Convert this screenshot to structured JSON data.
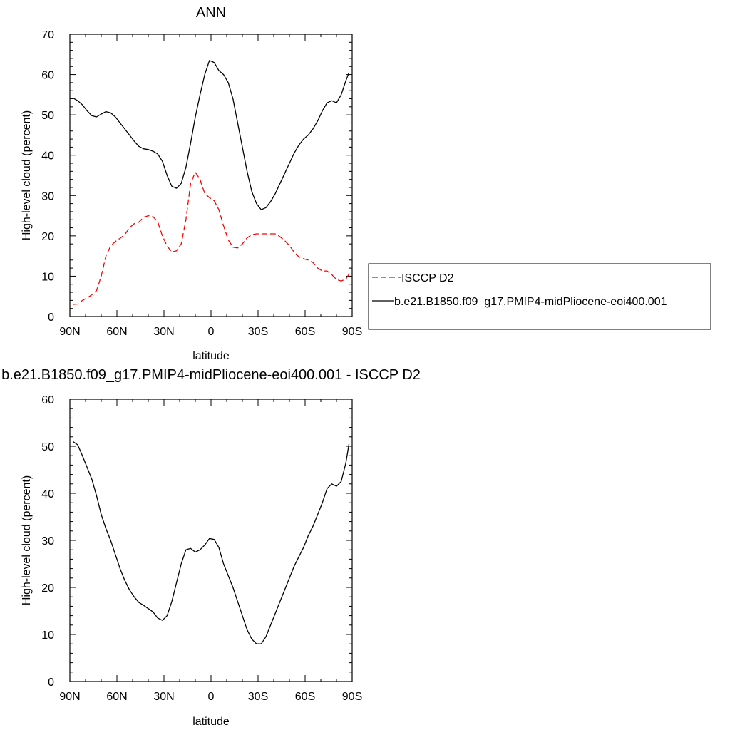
{
  "chart_data": [
    {
      "type": "line",
      "title": "ANN",
      "xlabel": "latitude",
      "ylabel": "High-level cloud (percent)",
      "xlim": [
        90,
        -90
      ],
      "ylim": [
        0,
        70
      ],
      "x_ticks": [
        90,
        60,
        30,
        0,
        -30,
        -60,
        -90
      ],
      "x_tick_labels": [
        "90N",
        "60N",
        "30N",
        "0",
        "30S",
        "60S",
        "90S"
      ],
      "y_ticks": [
        0,
        10,
        20,
        30,
        40,
        50,
        60,
        70
      ],
      "y_tick_labels": [
        "0",
        "10",
        "20",
        "30",
        "40",
        "50",
        "60",
        "70"
      ],
      "legend_position": "right",
      "colors": {
        "obs": "#ff0000",
        "model": "#000000"
      },
      "series": [
        {
          "name": "ISCCP D2",
          "style": "dashed",
          "color": "#ff0000",
          "x": [
            88,
            85,
            82,
            79,
            76,
            73,
            70,
            67,
            64,
            61,
            58,
            55,
            52,
            49,
            46,
            43,
            40,
            37,
            34,
            31,
            28,
            25,
            22,
            19,
            16,
            13,
            10,
            7,
            4,
            1,
            -2,
            -5,
            -8,
            -11,
            -14,
            -17,
            -20,
            -23,
            -26,
            -29,
            -32,
            -35,
            -38,
            -41,
            -44,
            -47,
            -50,
            -53,
            -56,
            -59,
            -62,
            -65,
            -68,
            -71,
            -74,
            -77,
            -80,
            -83,
            -86,
            -88
          ],
          "y": [
            3.0,
            3.1,
            4.0,
            4.6,
            5.4,
            6.4,
            10.0,
            15.0,
            17.5,
            18.6,
            19.4,
            20.3,
            22.0,
            23.0,
            23.4,
            24.6,
            25.0,
            24.8,
            23.5,
            20.0,
            17.5,
            16.0,
            16.3,
            18.0,
            24.0,
            33.0,
            35.8,
            34.0,
            30.5,
            29.5,
            28.7,
            26.5,
            22.5,
            19.0,
            17.2,
            17.0,
            18.0,
            19.5,
            20.3,
            20.5,
            20.5,
            20.5,
            20.5,
            20.5,
            19.8,
            18.8,
            17.6,
            16.0,
            14.8,
            14.3,
            14.0,
            13.4,
            12.0,
            11.3,
            11.3,
            10.4,
            9.2,
            8.8,
            9.3,
            10.5
          ]
        },
        {
          "name": "b.e21.B1850.f09_g17.PMIP4-midPliocene-eoi400.001",
          "style": "solid",
          "color": "#000000",
          "x": [
            88,
            85,
            82,
            79,
            76,
            73,
            70,
            67,
            64,
            61,
            58,
            55,
            52,
            49,
            46,
            43,
            40,
            37,
            34,
            31,
            28,
            25,
            22,
            19,
            16,
            13,
            10,
            7,
            4,
            1,
            -2,
            -5,
            -8,
            -11,
            -14,
            -17,
            -20,
            -23,
            -26,
            -29,
            -32,
            -35,
            -38,
            -41,
            -44,
            -47,
            -50,
            -53,
            -56,
            -59,
            -62,
            -65,
            -68,
            -71,
            -74,
            -77,
            -80,
            -83,
            -86,
            -88
          ],
          "y": [
            54.2,
            53.5,
            52.5,
            51.0,
            49.8,
            49.5,
            50.2,
            50.8,
            50.5,
            49.5,
            48.0,
            46.5,
            45.0,
            43.5,
            42.2,
            41.6,
            41.4,
            41.0,
            40.3,
            38.5,
            35.0,
            32.3,
            31.8,
            33.0,
            37.0,
            43.0,
            49.5,
            55.0,
            60.0,
            63.5,
            63.0,
            61.0,
            60.0,
            58.0,
            54.0,
            48.0,
            42.0,
            36.0,
            31.0,
            28.0,
            26.5,
            27.0,
            28.5,
            30.5,
            33.0,
            35.5,
            38.0,
            40.5,
            42.5,
            44.0,
            45.0,
            46.5,
            48.5,
            51.0,
            53.0,
            53.5,
            53.0,
            55.0,
            58.5,
            60.5
          ]
        }
      ]
    },
    {
      "type": "line",
      "title": "b.e21.B1850.f09_g17.PMIP4-midPliocene-eoi400.001 - ISCCP D2",
      "xlabel": "latitude",
      "ylabel": "High-level cloud (percent)",
      "xlim": [
        90,
        -90
      ],
      "ylim": [
        0,
        60
      ],
      "x_ticks": [
        90,
        60,
        30,
        0,
        -30,
        -60,
        -90
      ],
      "x_tick_labels": [
        "90N",
        "60N",
        "30N",
        "0",
        "30S",
        "60S",
        "90S"
      ],
      "y_ticks": [
        0,
        10,
        20,
        30,
        40,
        50,
        60
      ],
      "y_tick_labels": [
        "0",
        "10",
        "20",
        "30",
        "40",
        "50",
        "60"
      ],
      "series": [
        {
          "style": "solid",
          "color": "#000000",
          "x": [
            88,
            85,
            82,
            79,
            76,
            73,
            70,
            67,
            64,
            61,
            58,
            55,
            52,
            49,
            46,
            43,
            40,
            37,
            34,
            31,
            28,
            25,
            22,
            19,
            16,
            13,
            10,
            7,
            4,
            1,
            -2,
            -5,
            -8,
            -11,
            -14,
            -17,
            -20,
            -23,
            -26,
            -29,
            -32,
            -35,
            -38,
            -41,
            -44,
            -47,
            -50,
            -53,
            -56,
            -59,
            -62,
            -65,
            -68,
            -71,
            -74,
            -77,
            -80,
            -83,
            -86,
            -88
          ],
          "y": [
            51.0,
            50.3,
            48.0,
            45.5,
            43.0,
            39.5,
            35.5,
            32.5,
            30.0,
            27.0,
            24.0,
            21.5,
            19.5,
            18.0,
            16.8,
            16.2,
            15.5,
            14.8,
            13.5,
            13.0,
            14.0,
            17.0,
            21.0,
            25.0,
            28.0,
            28.3,
            27.5,
            28.0,
            29.0,
            30.4,
            30.2,
            28.5,
            25.0,
            22.5,
            20.0,
            17.0,
            14.0,
            11.0,
            9.0,
            8.0,
            8.0,
            9.5,
            12.0,
            14.5,
            17.0,
            19.5,
            22.0,
            24.5,
            26.5,
            28.5,
            31.0,
            33.0,
            35.5,
            38.0,
            41.0,
            42.0,
            41.5,
            42.5,
            46.5,
            50.5
          ]
        }
      ]
    }
  ]
}
